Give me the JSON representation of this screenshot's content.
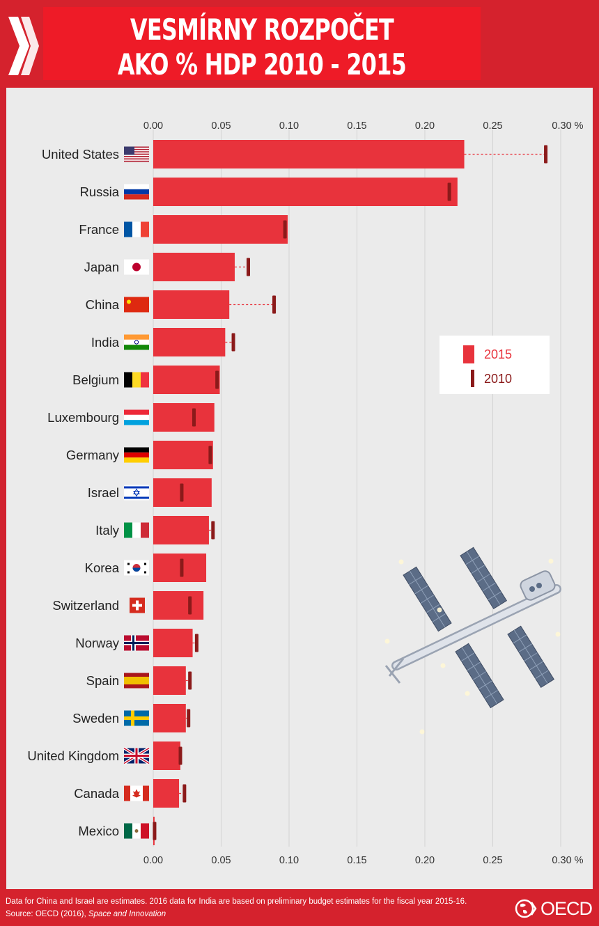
{
  "title": {
    "line1": "VESMÍRNY ROZPOČET",
    "line2": "AKO % HDP 2010 - 2015"
  },
  "colors": {
    "page_red": "#d5222d",
    "title_red": "#ee1b27",
    "bar_2015": "#e8333c",
    "marker_2010": "#8b1a1a",
    "panel": "#ebebeb"
  },
  "chart_data": {
    "type": "bar",
    "orientation": "horizontal",
    "xlim": [
      0,
      0.3
    ],
    "ticks": [
      "0.00",
      "0.05",
      "0.10",
      "0.15",
      "0.20",
      "0.25",
      "0.30 %"
    ],
    "tick_values": [
      0,
      0.05,
      0.1,
      0.15,
      0.2,
      0.25,
      0.3
    ],
    "grid": true,
    "legend_position": "right-middle",
    "categories": [
      "United States",
      "Russia",
      "France",
      "Japan",
      "China",
      "India",
      "Belgium",
      "Luxembourg",
      "Germany",
      "Israel",
      "Italy",
      "Korea",
      "Switzerland",
      "Norway",
      "Spain",
      "Sweden",
      "United Kingdom",
      "Canada",
      "Mexico"
    ],
    "flags": [
      "us-flag-icon",
      "russia-flag-icon",
      "france-flag-icon",
      "japan-flag-icon",
      "china-flag-icon",
      "india-flag-icon",
      "belgium-flag-icon",
      "luxembourg-flag-icon",
      "germany-flag-icon",
      "israel-flag-icon",
      "italy-flag-icon",
      "korea-flag-icon",
      "switzerland-flag-icon",
      "norway-flag-icon",
      "spain-flag-icon",
      "sweden-flag-icon",
      "uk-flag-icon",
      "canada-flag-icon",
      "mexico-flag-icon"
    ],
    "series": [
      {
        "name": "2015",
        "mark": "bar",
        "values": [
          0.229,
          0.224,
          0.099,
          0.06,
          0.056,
          0.053,
          0.049,
          0.045,
          0.044,
          0.043,
          0.041,
          0.039,
          0.037,
          0.029,
          0.024,
          0.024,
          0.02,
          0.019,
          0.001
        ]
      },
      {
        "name": "2010",
        "mark": "tick",
        "values": [
          0.289,
          0.218,
          0.097,
          0.07,
          0.089,
          0.059,
          0.047,
          0.03,
          0.042,
          0.021,
          0.044,
          0.021,
          0.027,
          0.032,
          0.027,
          0.026,
          0.02,
          0.023,
          0.001
        ]
      }
    ]
  },
  "footer": {
    "note": "Data for China and Israel are estimates. 2016 data for India are based on preliminary budget estimates for the fiscal year 2015-16.",
    "source_prefix": "Source: OECD (2016), ",
    "source_title": "Space and Innovation",
    "logo_text": "OECD"
  }
}
